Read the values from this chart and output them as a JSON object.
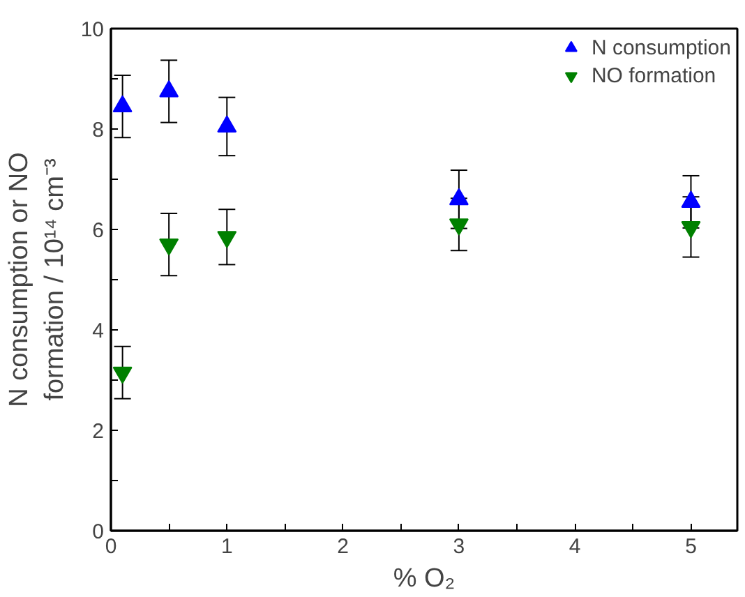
{
  "chart_data": {
    "type": "scatter",
    "xlabel": "% O₂",
    "ylabel": "N consumption or NO\nformation / 10¹⁴ cm⁻³",
    "x": [
      0.1,
      0.5,
      1,
      3,
      5
    ],
    "series": [
      {
        "name": "N consumption",
        "color": "#0000ff",
        "marker": "triangle",
        "values": [
          8.45,
          8.75,
          8.05,
          6.6,
          6.55
        ],
        "errors": [
          0.62,
          0.62,
          0.58,
          0.58,
          0.52
        ]
      },
      {
        "name": "NO formation",
        "color": "#008000",
        "marker": "triangle",
        "values": [
          3.15,
          5.7,
          5.85,
          6.1,
          6.05
        ],
        "errors": [
          0.52,
          0.62,
          0.55,
          0.52,
          0.6
        ]
      }
    ],
    "xlim": [
      0,
      5.4
    ],
    "ylim": [
      0,
      10
    ],
    "xticks": [
      0,
      {
        "value": 0.5,
        "label": null
      },
      1,
      {
        "value": 1.5,
        "label": null
      },
      2,
      {
        "value": 2.5,
        "label": null
      },
      3,
      {
        "value": 3.5,
        "label": null
      },
      4,
      {
        "value": 4.5,
        "label": null
      },
      5
    ],
    "yticks": [
      0,
      {
        "value": 1,
        "label": null
      },
      2,
      {
        "value": 3,
        "label": null
      },
      4,
      {
        "value": 5,
        "label": null
      },
      6,
      {
        "value": 7,
        "label": null
      },
      8,
      {
        "value": 9,
        "label": null
      },
      10
    ],
    "grid": false,
    "legend": "top right"
  }
}
